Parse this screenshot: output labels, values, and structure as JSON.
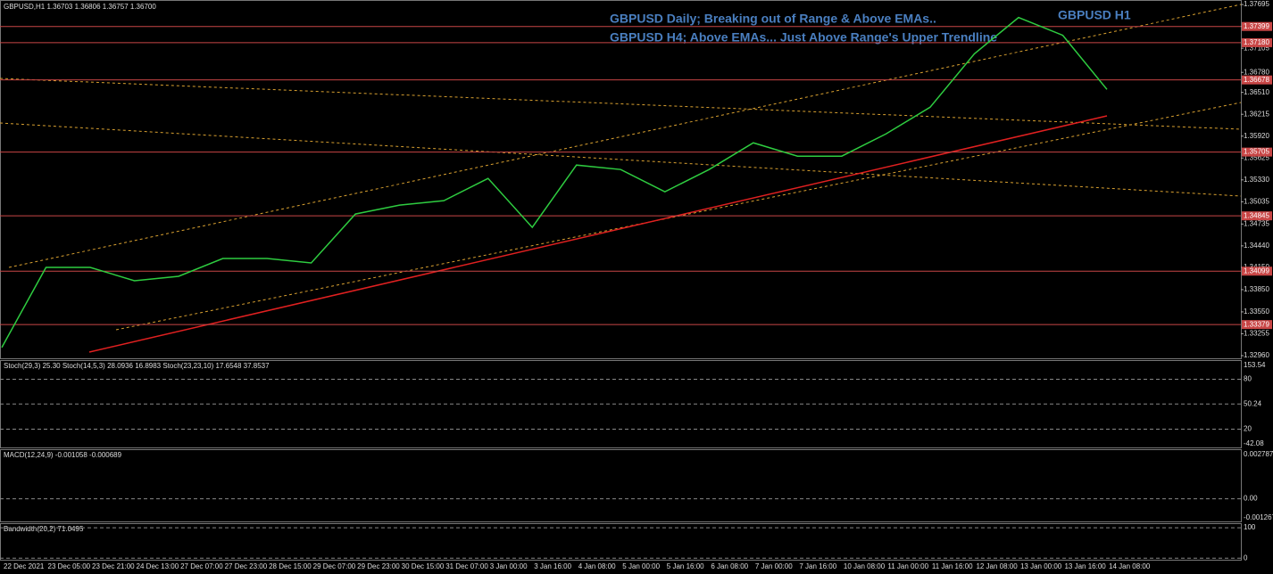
{
  "chart_data": {
    "type": "line",
    "header": "GBPUSD,H1  1.36703 1.36806 1.36757 1.36700",
    "annotations": [
      "GBPUSD Daily; Breaking out of Range & Above EMAs..",
      "GBPUSD H4; Above EMAs... Just Above Range's Upper Trendline",
      "GBPUSD H1"
    ],
    "categories": [
      "22 Dec 2021",
      "23 Dec 05:00",
      "23 Dec 21:00",
      "24 Dec 13:00",
      "27 Dec 07:00",
      "27 Dec 23:00",
      "28 Dec 15:00",
      "29 Dec 07:00",
      "29 Dec 23:00",
      "30 Dec 15:00",
      "31 Dec 07:00",
      "3 Jan 00:00",
      "3 Jan 16:00",
      "4 Jan 08:00",
      "5 Jan 00:00",
      "5 Jan 16:00",
      "6 Jan 08:00",
      "7 Jan 00:00",
      "7 Jan 16:00",
      "10 Jan 08:00",
      "11 Jan 00:00",
      "11 Jan 16:00",
      "12 Jan 08:00",
      "13 Jan 00:00",
      "13 Jan 16:00",
      "14 Jan 08:00"
    ],
    "series": [
      {
        "name": "GBPUSD",
        "color": "#2ecc40",
        "values": [
          1.3307,
          1.3415,
          1.3415,
          1.3397,
          1.3403,
          1.3427,
          1.3427,
          1.3421,
          1.3487,
          1.3499,
          1.3505,
          1.3535,
          1.3469,
          1.3553,
          1.3547,
          1.3517,
          1.3547,
          1.3583,
          1.3565,
          1.3565,
          1.3595,
          1.3631,
          1.3703,
          1.3752,
          1.3728,
          1.3655
        ]
      }
    ],
    "ylim": [
      1.3296,
      1.3772
    ],
    "yticks": [
      1.37695,
      {
        "value": 1.374,
        "label": "1.37400"
      },
      1.37105,
      {
        "value": 1.3678,
        "label": "1.36780"
      },
      {
        "value": 1.3651,
        "label": "1.36510"
      },
      1.36215,
      {
        "value": 1.3592,
        "label": "1.35920"
      },
      1.35625,
      {
        "value": 1.3533,
        "label": "1.35330"
      },
      1.35035,
      1.34735,
      {
        "value": 1.3444,
        "label": "1.34440"
      },
      {
        "value": 1.3415,
        "label": "1.34150"
      },
      {
        "value": 1.3385,
        "label": "1.33850"
      },
      {
        "value": 1.3355,
        "label": "1.33550"
      },
      1.33255,
      {
        "value": 1.3296,
        "label": "1.32960"
      }
    ],
    "levels": [
      1.37399,
      {
        "value": 1.3718,
        "label": "1.37180"
      },
      1.36678,
      1.35705,
      1.34845,
      1.34099,
      1.33379
    ],
    "level_color": "#c84646",
    "panes": [
      {
        "label": "Stoch(29,3) 25.30  Stoch(14,5,3) 28.0936 16.8983  Stoch(23,23,10) 17.6548 37.8537",
        "max": 153.54,
        "min": -42.08,
        "ylim": [
          -3,
          102
        ],
        "yticks": [
          80,
          50.24,
          20
        ]
      },
      {
        "label": "MACD(12,24,9) -0.001058 -0.000689",
        "max": 0.002787,
        "min": -0.001267,
        "ylim": [
          -0.0014,
          0.0029
        ],
        "yticks": [
          {
            "value": 0,
            "label": "0.00"
          }
        ]
      },
      {
        "label": "Bandwidth(20,2) 71.0495",
        "ylim": [
          -8,
          112
        ],
        "yticks": [
          100,
          0
        ]
      }
    ]
  }
}
